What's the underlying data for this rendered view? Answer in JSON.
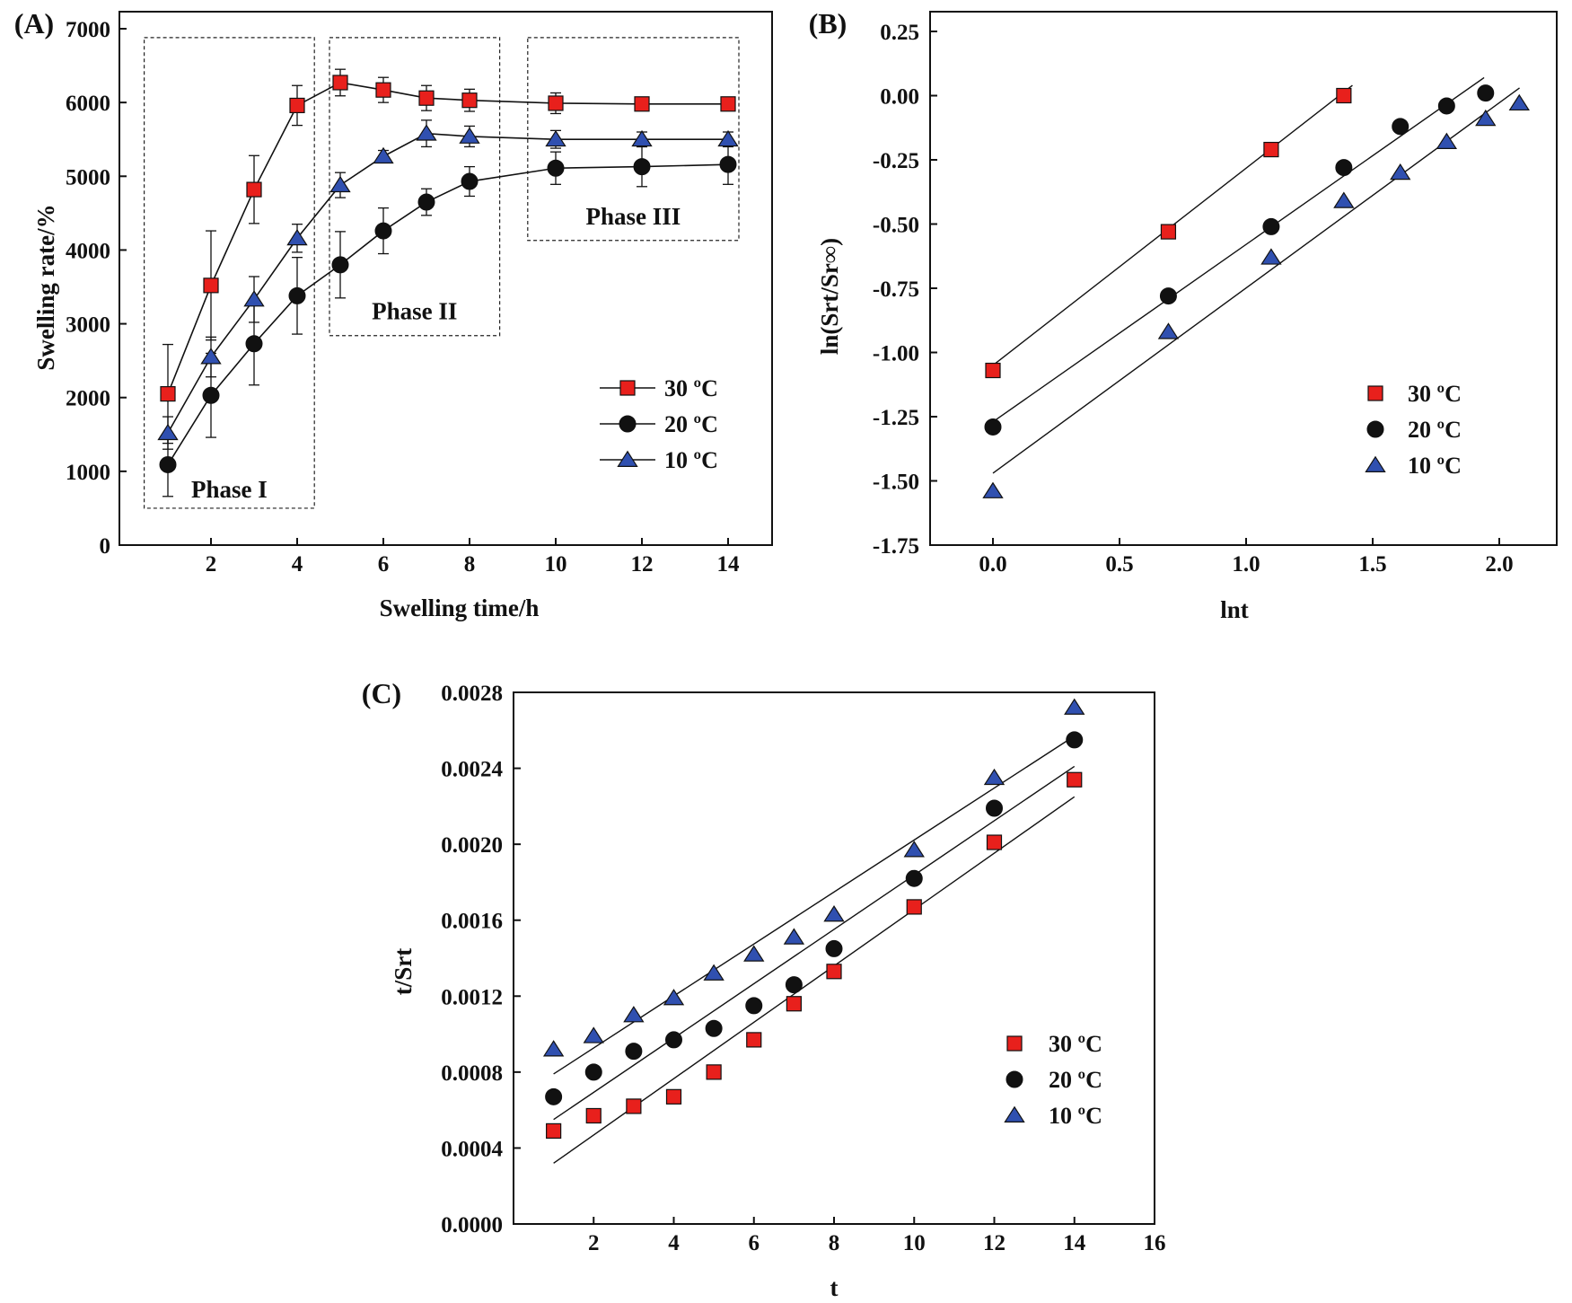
{
  "colors": {
    "t30": "#e8201c",
    "t20": "#111111",
    "t10": "#3050b0",
    "axis": "#111111"
  },
  "chart_data": [
    {
      "id": "A",
      "type": "line",
      "panel_label": "(A)",
      "xlabel": "Swelling time/h",
      "ylabel": "Swelling rate/%",
      "x": [
        1,
        2,
        3,
        4,
        5,
        6,
        7,
        8,
        10,
        12,
        14
      ],
      "xlim": [
        0,
        15
      ],
      "ylim": [
        0,
        7000
      ],
      "xticks": [
        2,
        4,
        6,
        8,
        10,
        12,
        14
      ],
      "yticks": [
        0,
        1000,
        2000,
        3000,
        4000,
        5000,
        6000,
        7000
      ],
      "x_index_map": "categorical: 8h then 10,12,14 spaced two units",
      "series": [
        {
          "name": "30 ºC",
          "marker": "square",
          "color_key": "t30",
          "values": [
            2050,
            3520,
            4820,
            5960,
            6270,
            6170,
            6060,
            6030,
            5990,
            5980,
            5980
          ],
          "errors": [
            670,
            740,
            460,
            270,
            180,
            170,
            170,
            150,
            140,
            80,
            70
          ]
        },
        {
          "name": "20 ºC",
          "marker": "circle",
          "color_key": "t20",
          "values": [
            1090,
            2030,
            2730,
            3380,
            3800,
            4260,
            4650,
            4930,
            5110,
            5130,
            5160
          ],
          "errors": [
            430,
            570,
            560,
            520,
            450,
            310,
            180,
            200,
            220,
            270,
            270
          ]
        },
        {
          "name": "10 ºC",
          "marker": "triangle",
          "color_key": "t10",
          "values": [
            1520,
            2550,
            3330,
            4160,
            4880,
            5270,
            5580,
            5540,
            5500,
            5500,
            5500
          ],
          "errors": [
            220,
            270,
            310,
            190,
            170,
            80,
            180,
            140,
            120,
            100,
            100
          ]
        }
      ],
      "annotations": [
        {
          "text": "Phase I",
          "x0": 0.45,
          "x1": 4.4,
          "y0": 500,
          "y1": 6880
        },
        {
          "text": "Phase II",
          "x0": 4.75,
          "x1": 8.7,
          "y0": 2840,
          "y1": 6880
        },
        {
          "text": "Phase III",
          "x0": 9.35,
          "x1": 14.25,
          "y0": 4130,
          "y1": 6880
        }
      ]
    },
    {
      "id": "B",
      "type": "scatter",
      "panel_label": "(B)",
      "xlabel": "lnt",
      "ylabel": "ln(Srt/Sr∞)",
      "xlim": [
        -0.25,
        2.2
      ],
      "ylim": [
        -1.75,
        0.25
      ],
      "xticks": [
        0.0,
        0.5,
        1.0,
        1.5,
        2.0
      ],
      "xtick_labels": [
        "0.0",
        "0.5",
        "1.0",
        "1.5",
        "2.0"
      ],
      "yticks": [
        0.25,
        0.0,
        -0.25,
        -0.5,
        -0.75,
        -1.0,
        -1.25,
        -1.5,
        -1.75
      ],
      "ytick_labels": [
        "0.25",
        "0.00",
        "-0.25",
        "-0.50",
        "-0.75",
        "-1.00",
        "-1.25",
        "-1.50",
        "-1.75"
      ],
      "series": [
        {
          "name": "30 ºC",
          "marker": "square",
          "color_key": "t30",
          "x": [
            0.0,
            0.693,
            1.099,
            1.386
          ],
          "y": [
            -1.07,
            -0.53,
            -0.21,
            0.0
          ],
          "fit": {
            "x0": 0.0,
            "y0": -1.05,
            "x1": 1.42,
            "y1": 0.04
          }
        },
        {
          "name": "20 ºC",
          "marker": "circle",
          "color_key": "t20",
          "x": [
            0.0,
            0.693,
            1.099,
            1.386,
            1.609,
            1.792,
            1.946
          ],
          "y": [
            -1.29,
            -0.78,
            -0.51,
            -0.28,
            -0.12,
            -0.04,
            0.01
          ],
          "fit": {
            "x0": 0.0,
            "y0": -1.27,
            "x1": 1.94,
            "y1": 0.07
          }
        },
        {
          "name": "10 ºC",
          "marker": "triangle",
          "color_key": "t10",
          "x": [
            0.0,
            0.693,
            1.099,
            1.386,
            1.609,
            1.792,
            1.946,
            2.079
          ],
          "y": [
            -1.54,
            -0.92,
            -0.63,
            -0.41,
            -0.3,
            -0.18,
            -0.09,
            -0.03
          ],
          "fit": {
            "x0": 0.0,
            "y0": -1.47,
            "x1": 2.08,
            "y1": 0.03
          }
        }
      ]
    },
    {
      "id": "C",
      "type": "scatter",
      "panel_label": "(C)",
      "xlabel": "t",
      "ylabel": "t/Srt",
      "xlim": [
        0,
        16
      ],
      "ylim": [
        0,
        0.0028
      ],
      "xticks": [
        2,
        4,
        6,
        8,
        10,
        12,
        14,
        16
      ],
      "yticks": [
        0.0,
        0.0004,
        0.0008,
        0.0012,
        0.0016,
        0.002,
        0.0024,
        0.0028
      ],
      "ytick_labels": [
        "0.0000",
        "0.0004",
        "0.0008",
        "0.0012",
        "0.0016",
        "0.0020",
        "0.0024",
        "0.0028"
      ],
      "series": [
        {
          "name": "30 ºC",
          "marker": "square",
          "color_key": "t30",
          "x": [
            1,
            2,
            3,
            4,
            5,
            6,
            7,
            8,
            10,
            12,
            14
          ],
          "y": [
            0.00049,
            0.00057,
            0.00062,
            0.00067,
            0.0008,
            0.00097,
            0.00116,
            0.00133,
            0.00167,
            0.00201,
            0.00234
          ],
          "fit": {
            "x0": 1,
            "y0": 0.00032,
            "x1": 14,
            "y1": 0.00225
          }
        },
        {
          "name": "20 ºC",
          "marker": "circle",
          "color_key": "t20",
          "x": [
            1,
            2,
            3,
            4,
            5,
            6,
            7,
            8,
            10,
            12,
            14
          ],
          "y": [
            0.00067,
            0.0008,
            0.00091,
            0.00097,
            0.00103,
            0.00115,
            0.00126,
            0.00145,
            0.00182,
            0.00219,
            0.00255
          ],
          "fit": {
            "x0": 1,
            "y0": 0.00055,
            "x1": 14,
            "y1": 0.00241
          }
        },
        {
          "name": "10 ºC",
          "marker": "triangle",
          "color_key": "t10",
          "x": [
            1,
            2,
            3,
            4,
            5,
            6,
            7,
            8,
            10,
            12,
            14
          ],
          "y": [
            0.00092,
            0.00099,
            0.0011,
            0.00119,
            0.00132,
            0.00142,
            0.00151,
            0.00163,
            0.00197,
            0.00235,
            0.00272
          ],
          "fit": {
            "x0": 1,
            "y0": 0.00079,
            "x1": 14,
            "y1": 0.00257
          }
        }
      ]
    }
  ]
}
